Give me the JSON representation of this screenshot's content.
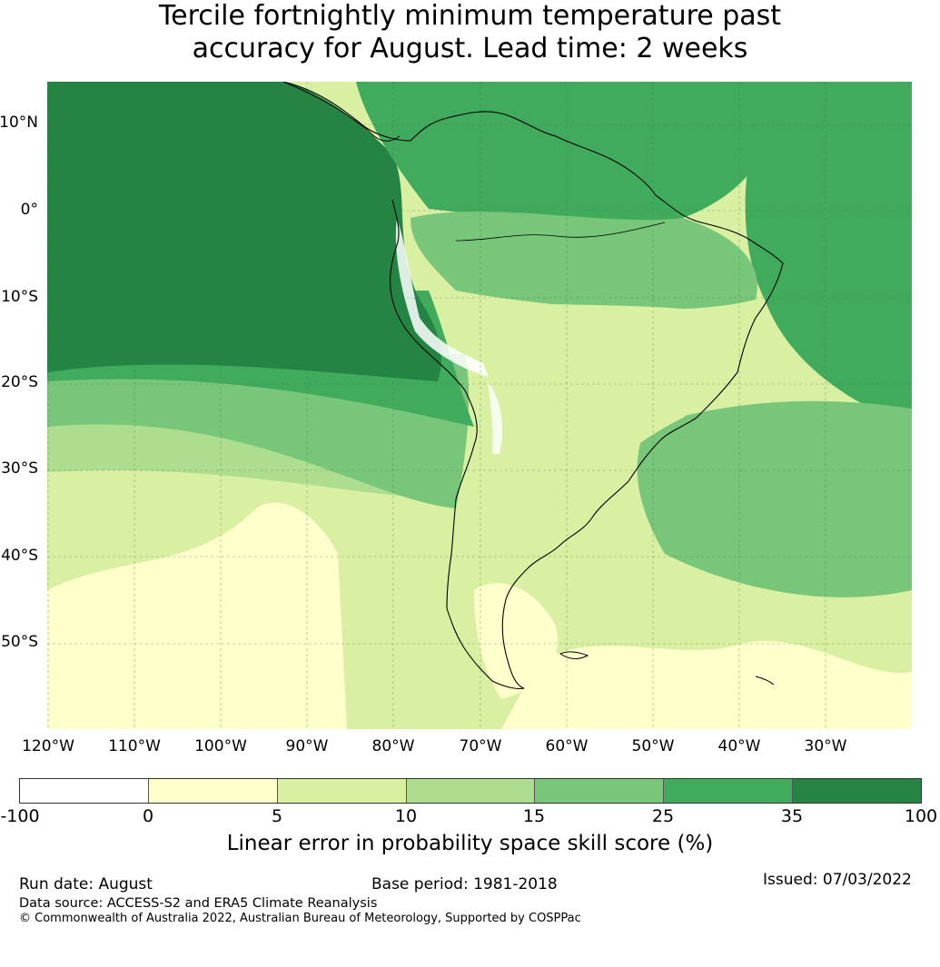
{
  "title": {
    "line1": "Tercile fortnightly minimum temperature past",
    "line2": "accuracy for August. Lead time: 2 weeks"
  },
  "map": {
    "region": "South America",
    "land_outline_color": "#000000",
    "gridline_color": "#4a6b4a",
    "lat_labels": [
      "10°N",
      "0°",
      "10°S",
      "20°S",
      "30°S",
      "40°S",
      "50°S"
    ],
    "lon_labels": [
      "120°W",
      "110°W",
      "100°W",
      "90°W",
      "80°W",
      "70°W",
      "60°W",
      "50°W",
      "40°W",
      "30°W"
    ]
  },
  "colorbar": {
    "ticks": [
      "-100",
      "0",
      "5",
      "10",
      "15",
      "25",
      "35",
      "100"
    ],
    "colors": [
      "#ffffff",
      "#ffffcc",
      "#d9f0a3",
      "#addd8e",
      "#78c679",
      "#41ab5d",
      "#238443"
    ],
    "label": "Linear error in probability space skill score (%)"
  },
  "footer": {
    "run_date": "Run date: August",
    "base_period": "Base period: 1981-2018",
    "issued": "Issued: 07/03/2022",
    "data_source": "Data source: ACCESS-S2 and ERA5 Climate Reanalysis",
    "copyright": "© Commonwealth of Australia 2022, Australian Bureau of Meteorology, Supported by COSPPac"
  }
}
